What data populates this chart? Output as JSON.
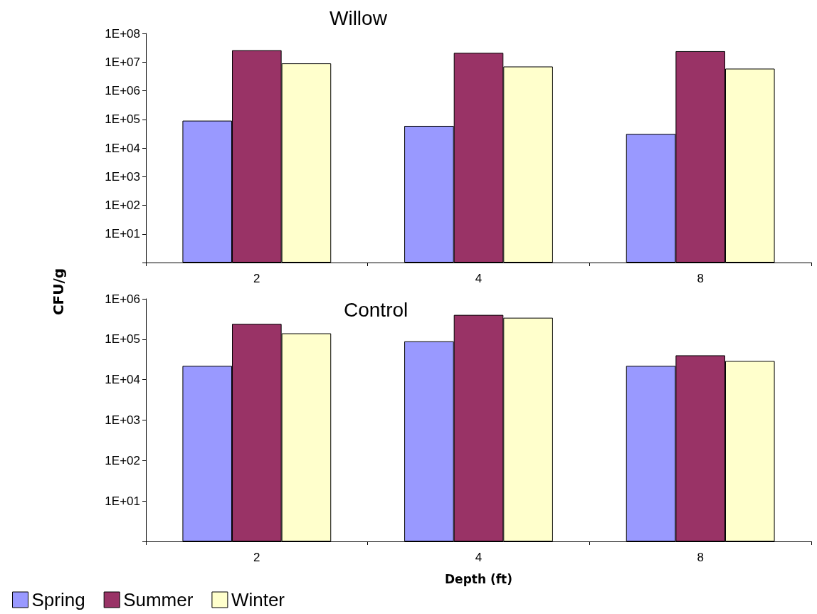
{
  "chart_data": [
    {
      "type": "bar",
      "title": "Willow",
      "ylabel": "CFU/g",
      "categories": [
        "2",
        "4",
        "8"
      ],
      "log": "y",
      "ylim": [
        1,
        100000000
      ],
      "yticks": [
        {
          "value": 1,
          "label": null
        },
        {
          "value": 10,
          "label": "1E+01"
        },
        {
          "value": 100,
          "label": "1E+02"
        },
        {
          "value": 1000,
          "label": "1E+03"
        },
        {
          "value": 10000,
          "label": "1E+04"
        },
        {
          "value": 100000,
          "label": "1E+05"
        },
        {
          "value": 1000000,
          "label": "1E+06"
        },
        {
          "value": 10000000,
          "label": "1E+07"
        },
        {
          "value": 100000000,
          "label": "1E+08"
        }
      ],
      "series": [
        {
          "color": "#9999ff",
          "values": [
            90000,
            59000,
            31000
          ]
        },
        {
          "color": "#993366",
          "values": [
            26000000,
            21000000,
            24000000
          ]
        },
        {
          "color": "#ffffcc",
          "values": [
            9000000,
            7000000,
            5900000
          ]
        }
      ],
      "grid": false,
      "legend": false
    },
    {
      "type": "bar",
      "title": "Control",
      "xlabel": "Depth (ft)",
      "categories": [
        "2",
        "4",
        "8"
      ],
      "log": "y",
      "ylim": [
        1,
        1000000
      ],
      "yticks": [
        {
          "value": 1,
          "label": null
        },
        {
          "value": 10,
          "label": "1E+01"
        },
        {
          "value": 100,
          "label": "1E+02"
        },
        {
          "value": 1000,
          "label": "1E+03"
        },
        {
          "value": 10000,
          "label": "1E+04"
        },
        {
          "value": 100000,
          "label": "1E+05"
        },
        {
          "value": 1000000,
          "label": "1E+06"
        }
      ],
      "series": [
        {
          "name": "Spring",
          "color": "#9999ff",
          "values": [
            22000,
            89000,
            22000
          ]
        },
        {
          "name": "Summer",
          "color": "#993366",
          "values": [
            240000,
            400000,
            40000
          ]
        },
        {
          "name": "Winter",
          "color": "#ffffcc",
          "values": [
            140000,
            340000,
            29000
          ]
        }
      ],
      "grid": false,
      "legend": "bottom left"
    }
  ]
}
